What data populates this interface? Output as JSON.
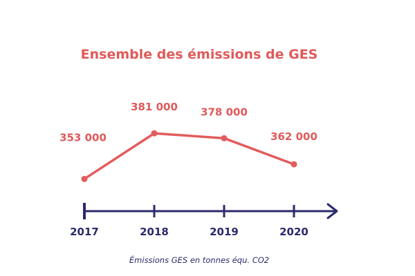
{
  "chart_data": {
    "type": "line",
    "title": "Ensemble des émissions de GES",
    "xlabel": "Émissions GES en tonnes équ. CO2",
    "ylabel": "",
    "categories": [
      "2017",
      "2018",
      "2019",
      "2020"
    ],
    "values": [
      353000,
      381000,
      378000,
      362000
    ],
    "value_labels": [
      "353 000",
      "381 000",
      "378 000",
      "362 000"
    ],
    "ylim": [
      340000,
      390000
    ],
    "grid": false,
    "colors": {
      "line": "#e25c5c",
      "axis": "#2b2a6b"
    }
  }
}
